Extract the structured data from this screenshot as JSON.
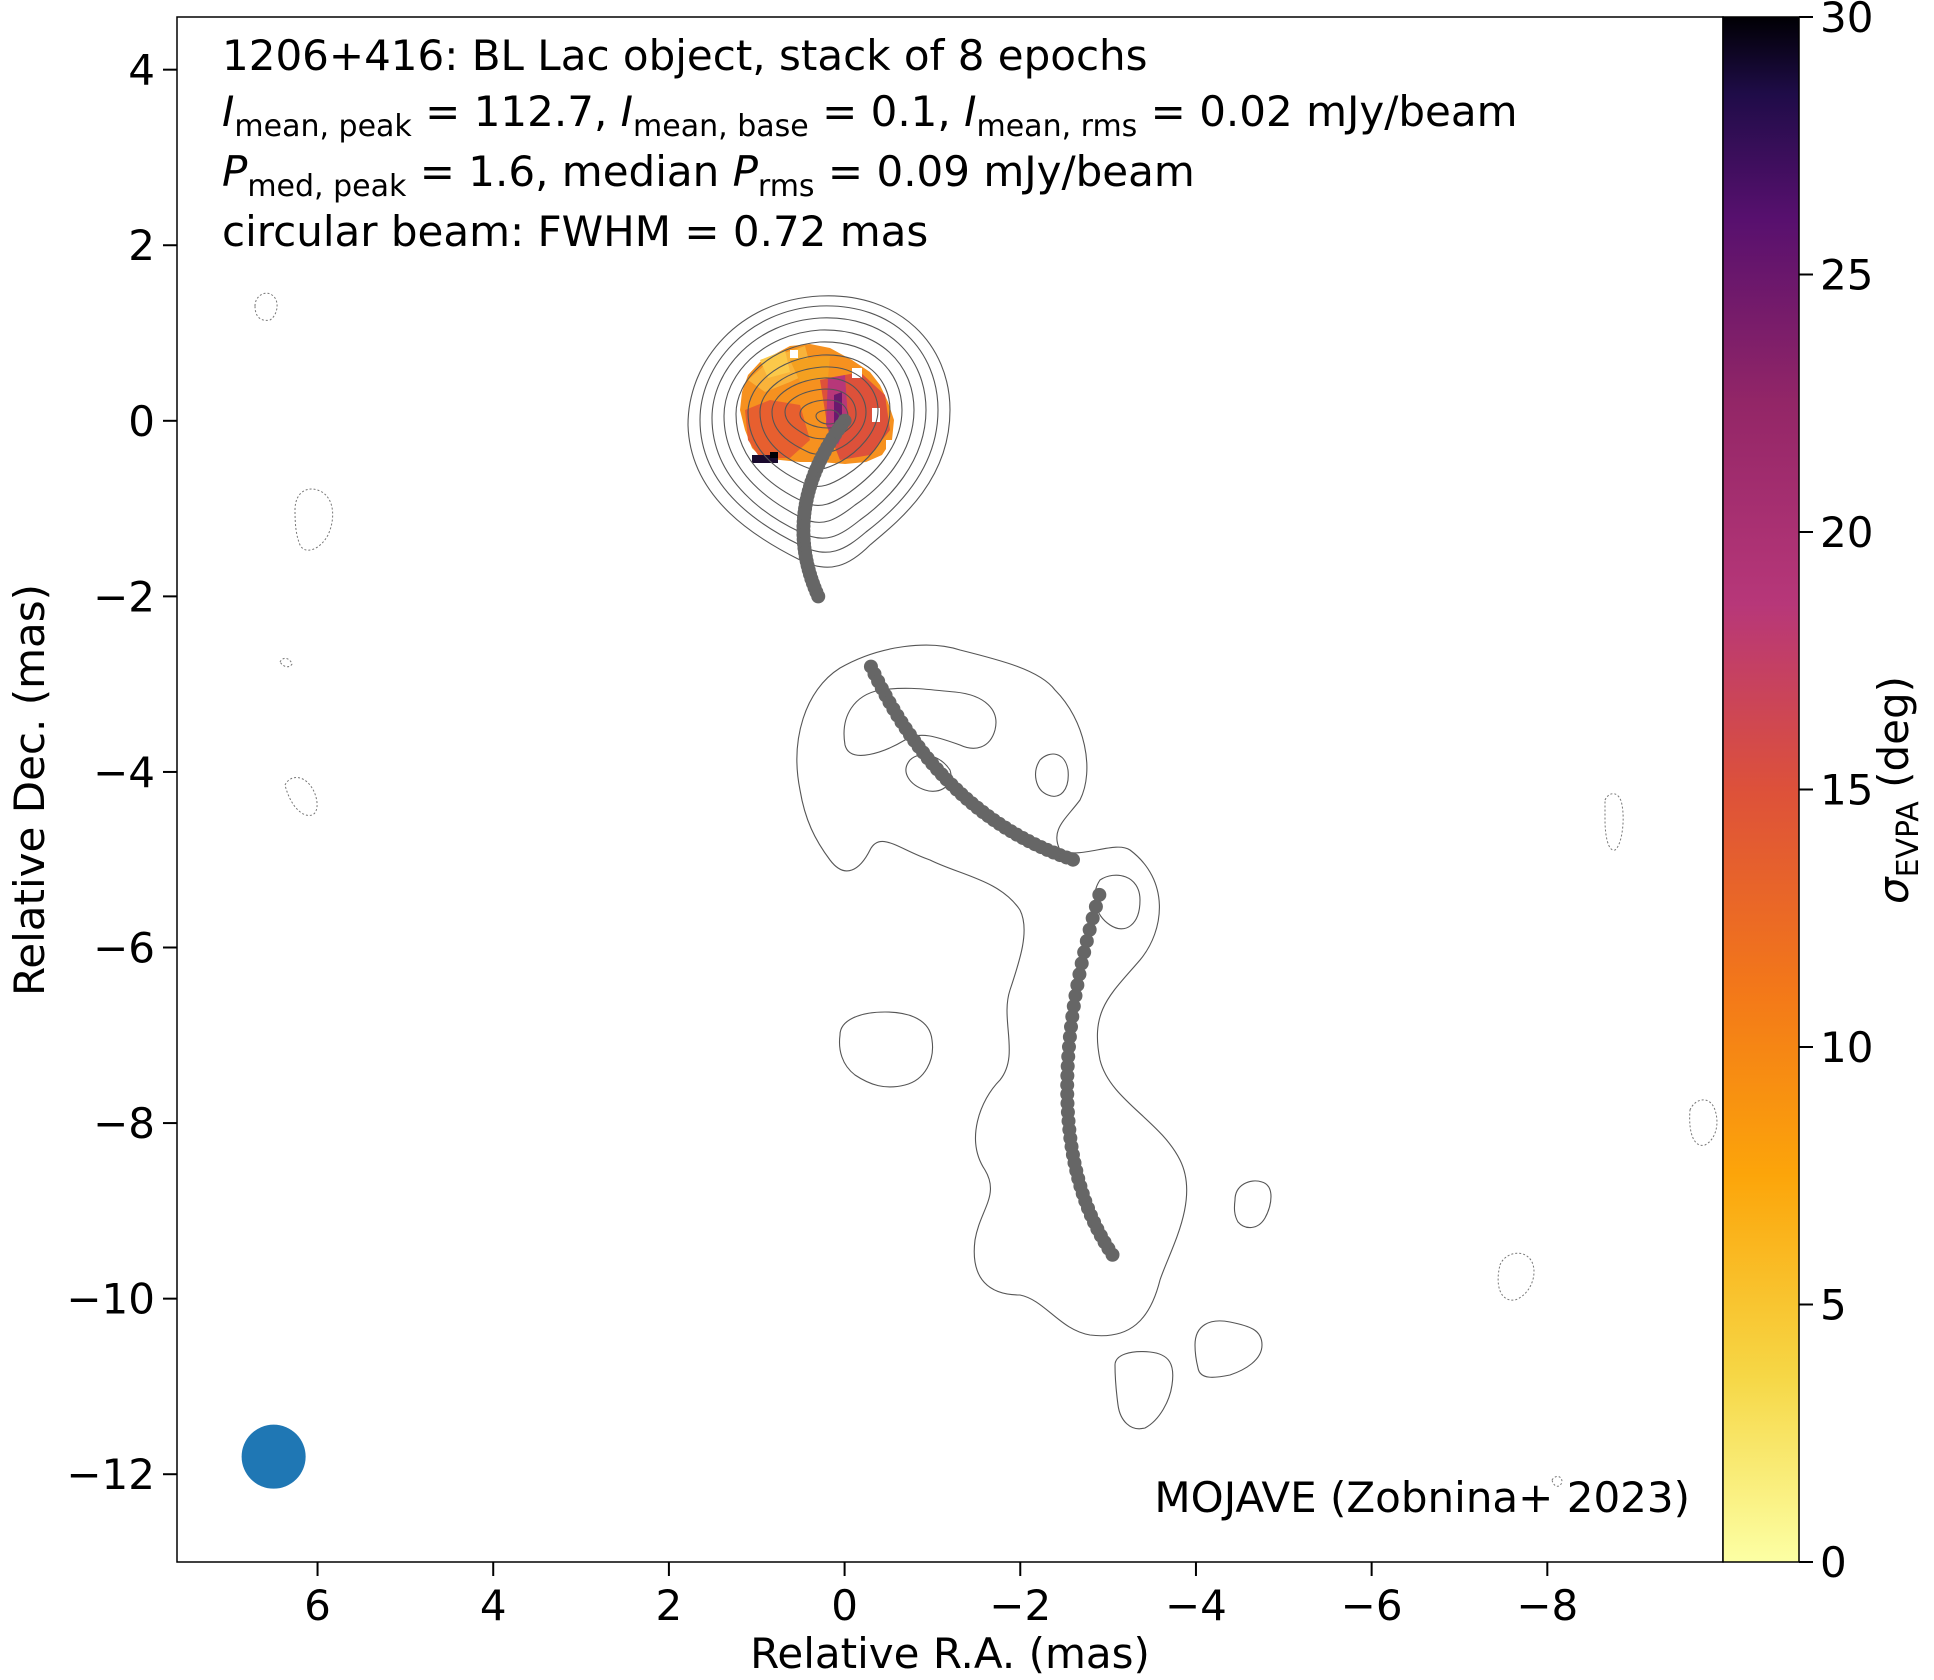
{
  "chart_data": {
    "type": "scatter",
    "title_lines": [
      "1206+416: BL Lac object, stack of 8 epochs",
      "I_mean,peak = 112.7, I_mean,base = 0.1, I_mean,rms = 0.02 mJy/beam",
      "P_med,peak = 1.6, median P_rms = 0.09 mJy/beam",
      "circular beam: FWHM = 0.72 mas"
    ],
    "annotation": "MOJAVE (Zobnina+ 2023)",
    "xlabel": "Relative R.A. (mas)",
    "ylabel": "Relative Dec. (mas)",
    "xlim": [
      7.6,
      -10.0
    ],
    "ylim": [
      -13.0,
      4.6
    ],
    "x_ticks": [
      6,
      4,
      2,
      0,
      -2,
      -4,
      -6,
      -8
    ],
    "y_ticks": [
      4,
      2,
      0,
      -2,
      -4,
      -6,
      -8,
      -10,
      -12
    ],
    "colorbar": {
      "label": "σ_EVPA (deg)",
      "range": [
        0,
        30
      ],
      "ticks": [
        0,
        5,
        10,
        15,
        20,
        25,
        30
      ],
      "colormap": "inferno_r"
    },
    "beam": {
      "x": 6.5,
      "y": -11.8,
      "fwhm_mas": 0.72,
      "color": "#1f77b4"
    },
    "point_color": "#666666",
    "tracks": [
      {
        "from": [
          0.0,
          0.0
        ],
        "via": [
          0.75,
          -1.0
        ],
        "to": [
          0.3,
          -2.0
        ]
      },
      {
        "from": [
          -0.3,
          -2.8
        ],
        "via": [
          -1.1,
          -4.5
        ],
        "to": [
          -2.6,
          -5.0
        ]
      },
      {
        "from": [
          -2.9,
          -5.4
        ],
        "via": [
          -2.1,
          -8.1
        ],
        "to": [
          -3.05,
          -9.5
        ]
      }
    ]
  }
}
